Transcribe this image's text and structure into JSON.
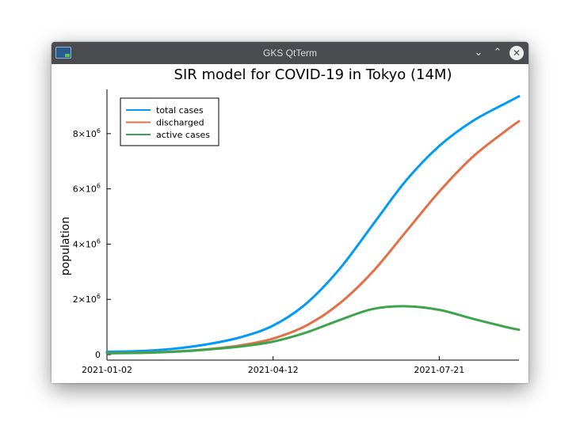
{
  "window": {
    "title": "GKS QtTerm",
    "icons": {
      "app": "gks-app-icon",
      "minimize": "chevron-down-icon",
      "maximize": "chevron-up-icon",
      "close": "close-icon"
    },
    "minimize_glyph": "⌄",
    "maximize_glyph": "⌃",
    "close_glyph": "✕"
  },
  "chart_data": {
    "type": "line",
    "title": "SIR model for COVID-19 in Tokyo (14M)",
    "xlabel": "",
    "ylabel": "population",
    "x_ticks": [
      "2021-01-02",
      "2021-04-12",
      "2021-07-21"
    ],
    "x_tick_values": [
      "2021-01-02",
      "2021-04-12",
      "2021-07-21"
    ],
    "xlim": [
      "2021-01-02",
      "2021-09-07"
    ],
    "y_ticks": [
      {
        "value": 0,
        "mantissa": "0",
        "exp": ""
      },
      {
        "value": 2000000,
        "mantissa": "2×10",
        "exp": "6"
      },
      {
        "value": 4000000,
        "mantissa": "4×10",
        "exp": "6"
      },
      {
        "value": 6000000,
        "mantissa": "6×10",
        "exp": "6"
      },
      {
        "value": 8000000,
        "mantissa": "8×10",
        "exp": "6"
      }
    ],
    "ylim": [
      -200000,
      9600000
    ],
    "grid": false,
    "legend_position": "top-left",
    "x": [
      "2021-01-02",
      "2021-01-22",
      "2021-02-11",
      "2021-03-03",
      "2021-03-23",
      "2021-04-12",
      "2021-05-02",
      "2021-05-22",
      "2021-06-11",
      "2021-07-01",
      "2021-07-21",
      "2021-08-10",
      "2021-08-30",
      "2021-09-07"
    ],
    "series": [
      {
        "name": "total cases",
        "color": "#009af9",
        "values": [
          100000,
          130000,
          210000,
          370000,
          620000,
          1050000,
          1850000,
          3100000,
          4700000,
          6300000,
          7550000,
          8450000,
          9100000,
          9350000
        ]
      },
      {
        "name": "discharged",
        "color": "#e26f46",
        "values": [
          50000,
          70000,
          110000,
          190000,
          330000,
          580000,
          1050000,
          1850000,
          3000000,
          4450000,
          5900000,
          7150000,
          8100000,
          8450000
        ]
      },
      {
        "name": "active cases",
        "color": "#3da44d",
        "values": [
          50000,
          60000,
          100000,
          180000,
          290000,
          470000,
          800000,
          1250000,
          1650000,
          1750000,
          1620000,
          1300000,
          1000000,
          900000
        ]
      }
    ]
  }
}
